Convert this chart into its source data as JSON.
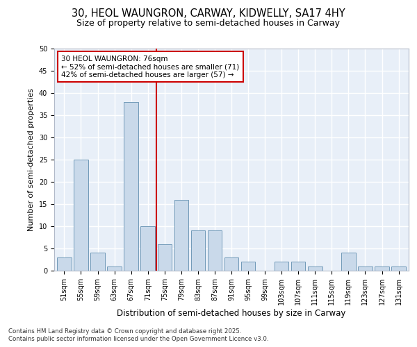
{
  "title": "30, HEOL WAUNGRON, CARWAY, KIDWELLY, SA17 4HY",
  "subtitle": "Size of property relative to semi-detached houses in Carway",
  "xlabel": "Distribution of semi-detached houses by size in Carway",
  "ylabel": "Number of semi-detached properties",
  "categories": [
    "51sqm",
    "55sqm",
    "59sqm",
    "63sqm",
    "67sqm",
    "71sqm",
    "75sqm",
    "79sqm",
    "83sqm",
    "87sqm",
    "91sqm",
    "95sqm",
    "99sqm",
    "103sqm",
    "107sqm",
    "111sqm",
    "115sqm",
    "119sqm",
    "123sqm",
    "127sqm",
    "131sqm"
  ],
  "values": [
    3,
    25,
    4,
    1,
    38,
    10,
    6,
    16,
    9,
    9,
    3,
    2,
    0,
    2,
    2,
    1,
    0,
    4,
    1,
    1,
    1
  ],
  "bar_color": "#c9d9ea",
  "bar_edgecolor": "#7099b8",
  "background_color": "#e8eff8",
  "grid_color": "#ffffff",
  "annotation_box_edgecolor": "#cc0000",
  "annotation_line1": "30 HEOL WAUNGRON: 76sqm",
  "annotation_line2": "← 52% of semi-detached houses are smaller (71)",
  "annotation_line3": "42% of semi-detached houses are larger (57) →",
  "vline_color": "#cc0000",
  "ylim": [
    0,
    50
  ],
  "yticks": [
    0,
    5,
    10,
    15,
    20,
    25,
    30,
    35,
    40,
    45,
    50
  ],
  "footnote1": "Contains HM Land Registry data © Crown copyright and database right 2025.",
  "footnote2": "Contains public sector information licensed under the Open Government Licence v3.0.",
  "title_fontsize": 10.5,
  "subtitle_fontsize": 9,
  "ylabel_fontsize": 8,
  "xlabel_fontsize": 8.5,
  "tick_fontsize": 7,
  "annot_fontsize": 7.5,
  "footnote_fontsize": 6.2
}
